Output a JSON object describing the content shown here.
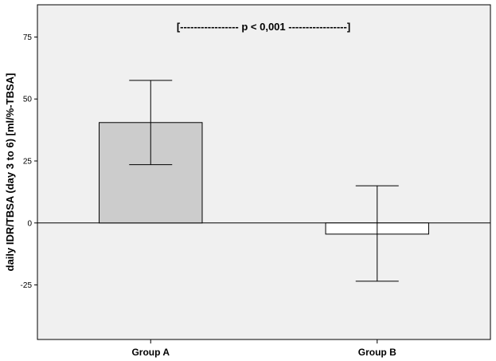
{
  "chart_data": {
    "type": "bar",
    "categories": [
      "Group A",
      "Group B"
    ],
    "values": [
      40.5,
      -4.5
    ],
    "error_bars": [
      {
        "low": 23.5,
        "high": 57.5
      },
      {
        "low": -23.5,
        "high": 15.0
      }
    ],
    "ylabel": "daily IDR/TBSA (day 3 to 6) [ml/%-TBSA]",
    "xlabel": "",
    "ylim": [
      -47,
      88
    ],
    "yticks": [
      -25,
      0,
      25,
      50,
      75
    ],
    "annotation": "[----------------- p < 0,001 -----------------]",
    "grid": false,
    "legend": "none",
    "colors": {
      "plot_background": "#f0f0f0",
      "bar_fills": [
        "#cccccc",
        "#ffffff"
      ],
      "stroke": "#000000"
    }
  }
}
